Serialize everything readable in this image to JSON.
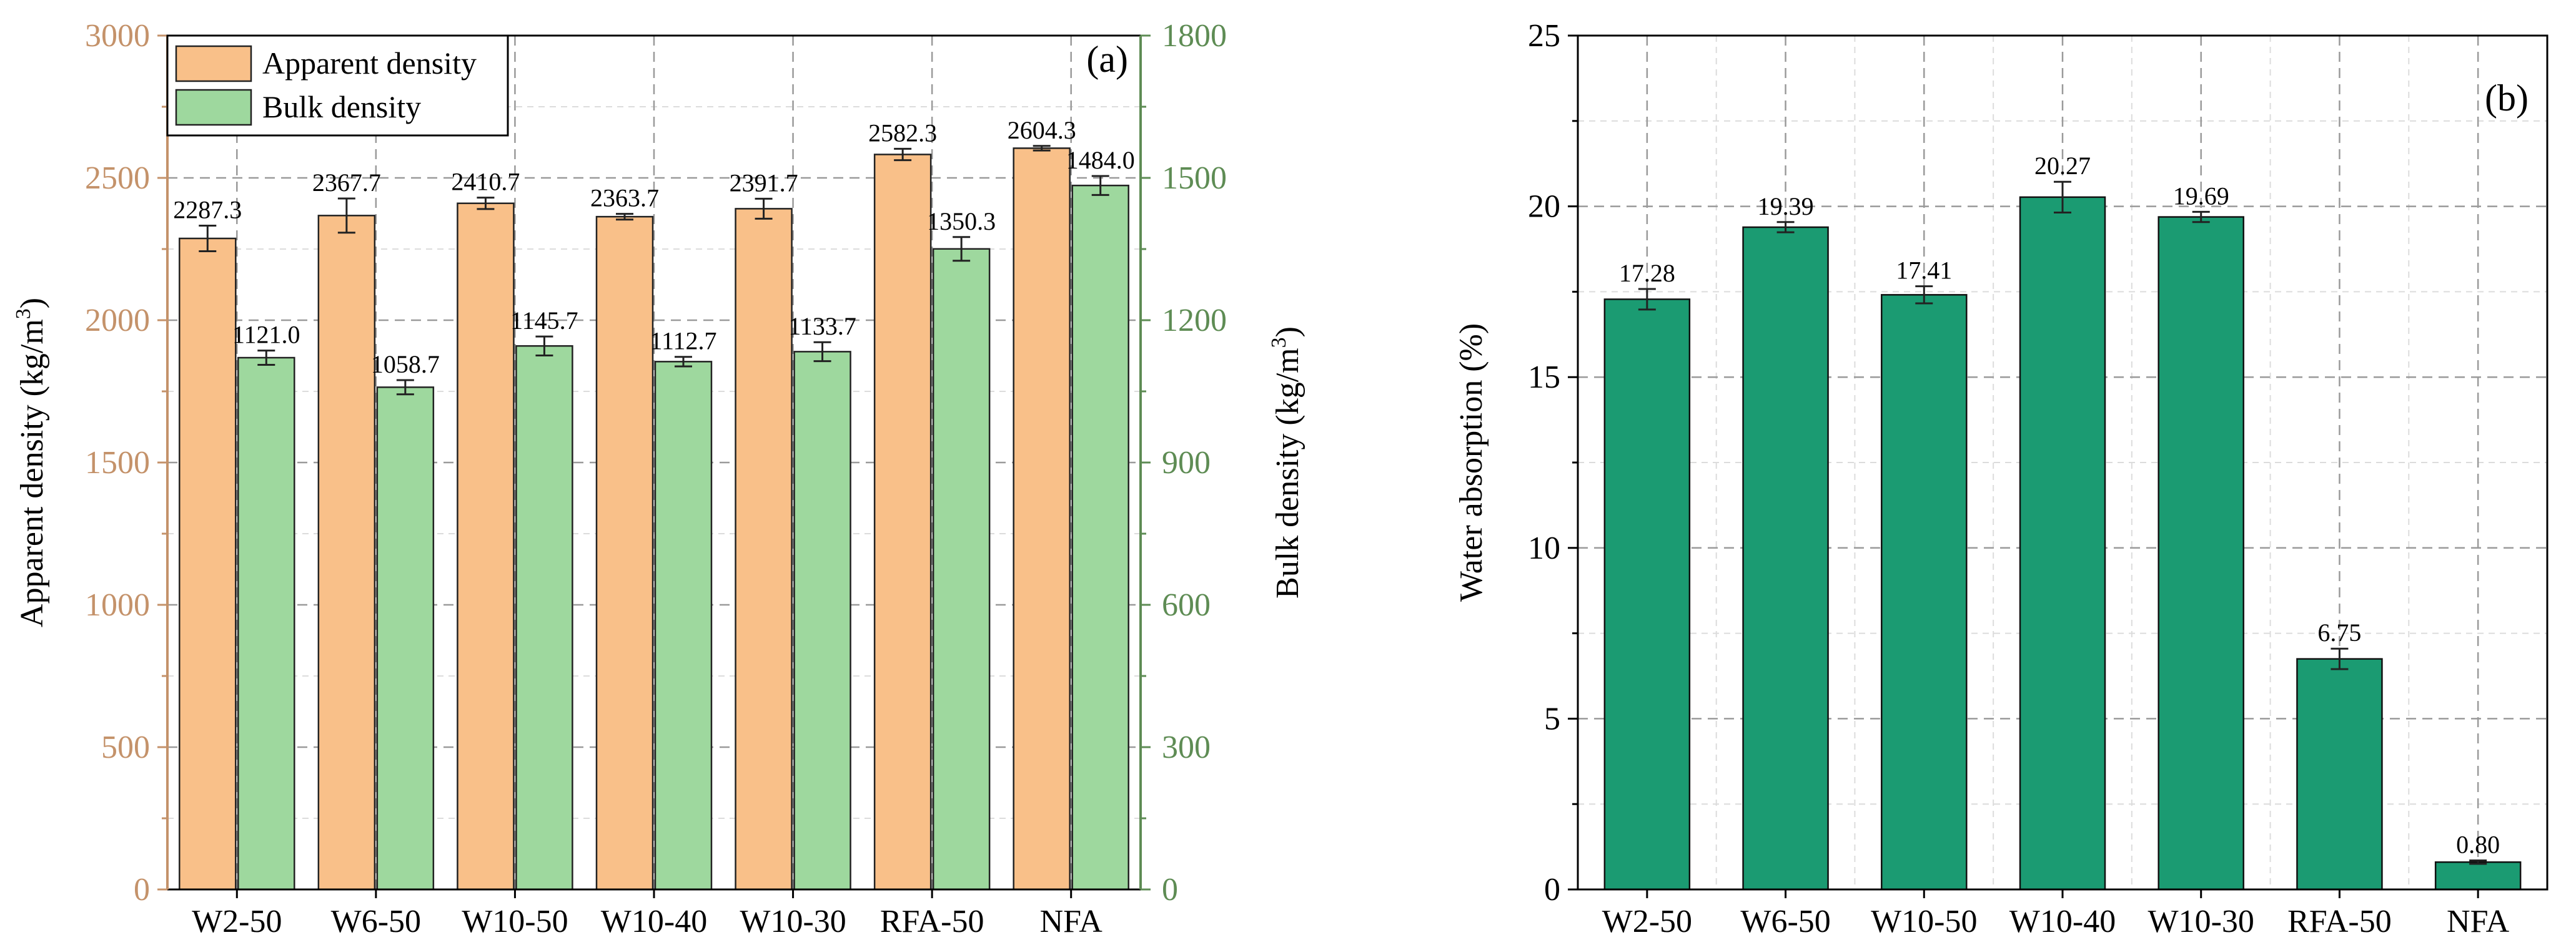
{
  "colors": {
    "apparent_fill": "#F9C089",
    "bulk_fill": "#9ED89E",
    "absorption_fill": "#1B9B72",
    "left_axis": "#C4926A",
    "right_axis": "#5E8C54",
    "grid": "#9A9A9A",
    "minor_grid": "#DCDCDC",
    "outline": "#000000"
  },
  "chart_data": [
    {
      "panel": "(a)",
      "type": "bar",
      "categories": [
        "W2-50",
        "W6-50",
        "W10-50",
        "W10-40",
        "W10-30",
        "RFA-50",
        "NFA"
      ],
      "series": [
        {
          "name": "Apparent density",
          "axis": "left",
          "values": [
            2287.3,
            2367.7,
            2410.7,
            2363.7,
            2391.7,
            2582.3,
            2604.3
          ],
          "value_labels": [
            "2287.3",
            "2367.7",
            "2410.7",
            "2363.7",
            "2391.7",
            "2582.3",
            "2604.3"
          ],
          "errors": [
            45,
            60,
            20,
            10,
            35,
            20,
            8
          ]
        },
        {
          "name": "Bulk density",
          "axis": "right",
          "values": [
            1121.0,
            1058.7,
            1145.7,
            1112.7,
            1133.7,
            1350.3,
            1484.0
          ],
          "value_labels": [
            "1121.0",
            "1058.7",
            "1145.7",
            "1112.7",
            "1133.7",
            "1350.3",
            "1484.0"
          ],
          "errors": [
            15,
            15,
            20,
            10,
            20,
            25,
            20
          ]
        }
      ],
      "ylabel_left": "Apparent density (kg/m",
      "ylabel_right": "Bulk density (kg/m",
      "ylabel_unit_sup": "3",
      "ylabel_close": ")",
      "ylim_left": [
        0,
        3000
      ],
      "yticks_left": [
        0,
        500,
        1000,
        1500,
        2000,
        2500,
        3000
      ],
      "ylim_right": [
        0,
        1800
      ],
      "yticks_right": [
        0,
        300,
        600,
        900,
        1200,
        1500,
        1800
      ],
      "grid": true,
      "legend": {
        "placement": "top-left",
        "entries": [
          "Apparent density",
          "Bulk density"
        ]
      }
    },
    {
      "panel": "(b)",
      "type": "bar",
      "categories": [
        "W2-50",
        "W6-50",
        "W10-50",
        "W10-40",
        "W10-30",
        "RFA-50",
        "NFA"
      ],
      "series": [
        {
          "name": "Water absorption",
          "values": [
            17.28,
            19.39,
            17.41,
            20.27,
            19.69,
            6.75,
            0.8
          ],
          "value_labels": [
            "17.28",
            "19.39",
            "17.41",
            "20.27",
            "19.69",
            "6.75",
            "0.80"
          ],
          "errors": [
            0.3,
            0.15,
            0.25,
            0.45,
            0.15,
            0.3,
            0.05
          ]
        }
      ],
      "ylabel": "Water absorption (%)",
      "ylim": [
        0,
        25
      ],
      "yticks": [
        0,
        5,
        10,
        15,
        20,
        25
      ],
      "grid": true
    }
  ]
}
